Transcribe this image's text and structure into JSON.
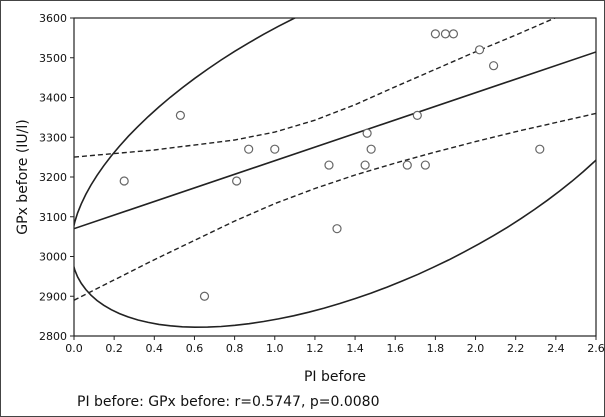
{
  "chart_data": {
    "type": "scatter",
    "xlabel": "PI before",
    "ylabel": "GPx before (IU/l)",
    "xlim": [
      0.0,
      2.6
    ],
    "ylim": [
      2800,
      3600
    ],
    "x_ticks": [
      "0.0",
      "0.2",
      "0.4",
      "0.6",
      "0.8",
      "1.0",
      "1.2",
      "1.4",
      "1.6",
      "1.8",
      "2.0",
      "2.2",
      "2.4",
      "2.6"
    ],
    "y_ticks": [
      "2800",
      "2900",
      "3000",
      "3100",
      "3200",
      "3300",
      "3400",
      "3500",
      "3600"
    ],
    "points": [
      {
        "x": 0.25,
        "y": 3190
      },
      {
        "x": 0.53,
        "y": 3355
      },
      {
        "x": 0.65,
        "y": 2900
      },
      {
        "x": 0.81,
        "y": 3190
      },
      {
        "x": 0.87,
        "y": 3270
      },
      {
        "x": 1.0,
        "y": 3270
      },
      {
        "x": 1.27,
        "y": 3230
      },
      {
        "x": 1.31,
        "y": 3070
      },
      {
        "x": 1.45,
        "y": 3230
      },
      {
        "x": 1.46,
        "y": 3310
      },
      {
        "x": 1.48,
        "y": 3270
      },
      {
        "x": 1.66,
        "y": 3230
      },
      {
        "x": 1.71,
        "y": 3355
      },
      {
        "x": 1.75,
        "y": 3230
      },
      {
        "x": 1.8,
        "y": 3560
      },
      {
        "x": 1.85,
        "y": 3560
      },
      {
        "x": 1.89,
        "y": 3560
      },
      {
        "x": 2.02,
        "y": 3520
      },
      {
        "x": 2.09,
        "y": 3480
      },
      {
        "x": 2.32,
        "y": 3270
      }
    ],
    "regression": {
      "intercept": 3070,
      "slope": 171
    },
    "confidence_band": {
      "x": [
        0.0,
        0.4,
        0.8,
        1.0,
        1.2,
        1.4,
        1.6,
        1.8,
        2.0,
        2.2,
        2.6
      ],
      "upper": [
        3250,
        3268,
        3293,
        3313,
        3343,
        3382,
        3427,
        3471,
        3515,
        3557,
        3645
      ],
      "lower": [
        2890,
        2992,
        3089,
        3133,
        3171,
        3205,
        3235,
        3263,
        3289,
        3314,
        3360
      ]
    },
    "ellipse": {
      "cx": 1.48,
      "cy": 3295,
      "sx": 0.61,
      "sy": 193,
      "r": 0.5747,
      "k": 2.45
    },
    "caption": "PI before: GPx before: r=0.5747, p=0.0080",
    "grid": false
  }
}
